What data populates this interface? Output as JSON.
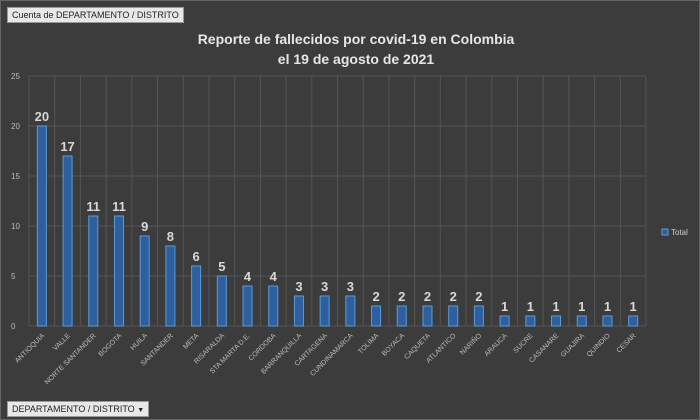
{
  "filter_button": "Cuenta de DEPARTAMENTO / DISTRITO",
  "axis_button": "DEPARTAMENTO / DISTRITO",
  "axis_button_icon": "dropdown-arrow-icon",
  "chart_data": {
    "type": "bar",
    "title_line1": "Reporte de fallecidos por covid-19 en Colombia",
    "title_line2": "el 19 de agosto de 2021",
    "categories": [
      "ANTIOQUIA",
      "VALLE",
      "NORTE SANTANDER",
      "BOGOTA",
      "HUILA",
      "SANTANDER",
      "META",
      "RISARALDA",
      "STA MARTA D.E.",
      "CORDOBA",
      "BARRANQUILLA",
      "CARTAGENA",
      "CUNDINAMARCA",
      "TOLIMA",
      "BOYACA",
      "CAQUETA",
      "ATLANTICO",
      "NARIÑO",
      "ARAUCA",
      "SUCRE",
      "CASANARE",
      "GUAJIRA",
      "QUINDIO",
      "CESAR"
    ],
    "series": [
      {
        "name": "Total",
        "values": [
          20,
          17,
          11,
          11,
          9,
          8,
          6,
          5,
          4,
          4,
          3,
          3,
          3,
          2,
          2,
          2,
          2,
          2,
          1,
          1,
          1,
          1,
          1,
          1
        ]
      }
    ],
    "ylim": [
      0,
      25
    ],
    "yticks": [
      0,
      5,
      10,
      15,
      20,
      25
    ],
    "grid": true,
    "legend": "right",
    "bar_color": "#2e5f9e",
    "bar_edge": "#5b9bd5"
  }
}
